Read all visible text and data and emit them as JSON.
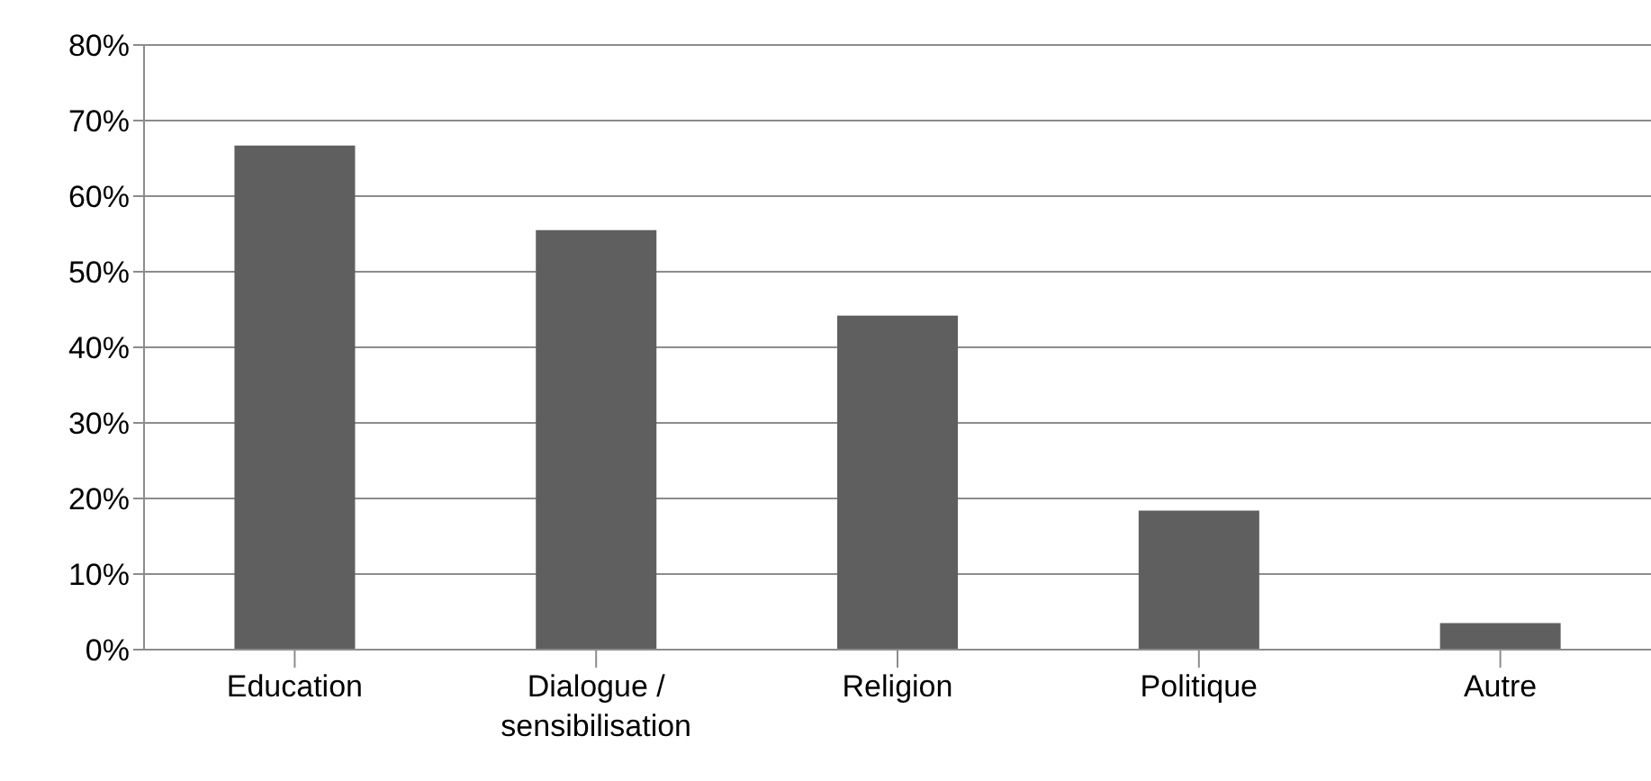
{
  "chart_data": {
    "type": "bar",
    "categories": [
      "Education",
      "Dialogue / sensibilisation",
      "Religion",
      "Politique",
      "Autre"
    ],
    "values": [
      66.7,
      55.5,
      44.2,
      18.4,
      3.5
    ],
    "color": "#5f5f5f",
    "ylim": [
      0,
      80
    ],
    "yticks": [
      {
        "value": 0,
        "label": "0%"
      },
      {
        "value": 10,
        "label": "10%"
      },
      {
        "value": 20,
        "label": "20%"
      },
      {
        "value": 30,
        "label": "30%"
      },
      {
        "value": 40,
        "label": "40%"
      },
      {
        "value": 50,
        "label": "50%"
      },
      {
        "value": 60,
        "label": "60%"
      },
      {
        "value": 70,
        "label": "70%"
      },
      {
        "value": 80,
        "label": "80%"
      }
    ],
    "grid": "y"
  }
}
